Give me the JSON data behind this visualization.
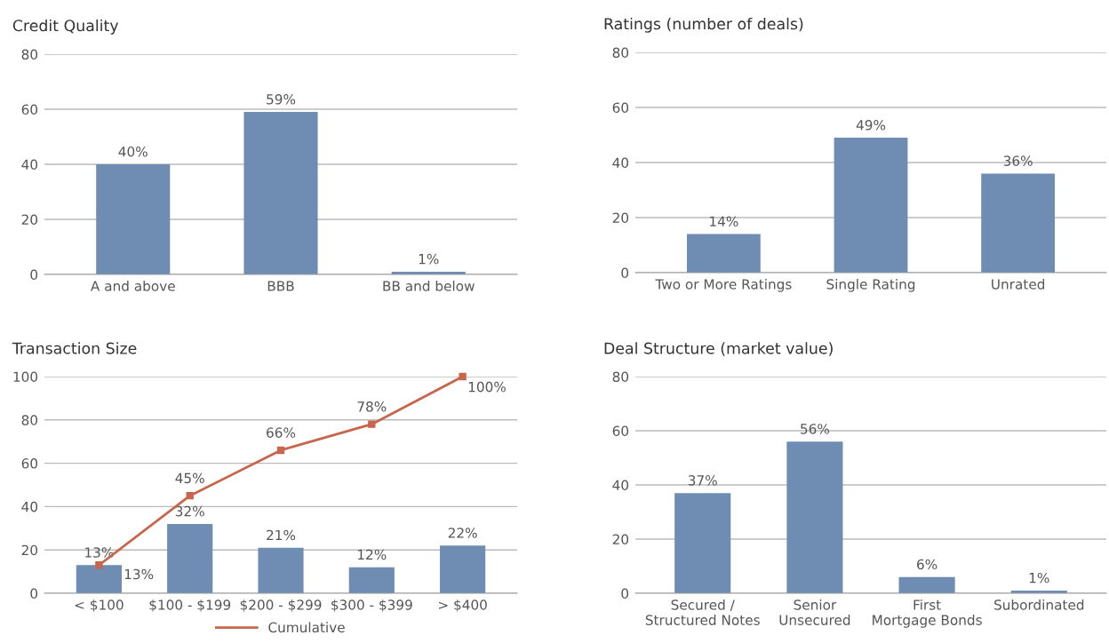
{
  "chart_data": [
    {
      "type": "bar",
      "title": "Credit Quality",
      "categories": [
        "A and above",
        "BBB",
        "BB and below"
      ],
      "values": [
        40,
        59,
        1
      ],
      "value_labels": [
        "40%",
        "59%",
        "1%"
      ],
      "color": "#6f8cb2",
      "ylim": [
        0,
        80
      ],
      "yticks": [
        0,
        20,
        40,
        60,
        80
      ],
      "grid": "y"
    },
    {
      "type": "bar",
      "title": "Ratings (number of deals)",
      "categories": [
        "Two or More Ratings",
        "Single Rating",
        "Unrated"
      ],
      "values": [
        14,
        49,
        36
      ],
      "value_labels": [
        "14%",
        "49%",
        "36%"
      ],
      "color": "#6f8cb2",
      "ylim": [
        0,
        80
      ],
      "yticks": [
        0,
        20,
        40,
        60,
        80
      ],
      "grid": "y"
    },
    {
      "type": "bar",
      "title": "Transaction Size",
      "categories": [
        "< $100",
        "$100 - $199",
        "$200 - $299",
        "$300 - $399",
        "> $400"
      ],
      "series": [
        {
          "type": "bar",
          "color": "#6f8cb2",
          "values": [
            13,
            32,
            21,
            12,
            22
          ],
          "value_labels": [
            "13%",
            "32%",
            "21%",
            "12%",
            "22%"
          ]
        },
        {
          "type": "line",
          "name": "Cumulative",
          "color": "#c8654d",
          "marker": "square",
          "values": [
            13,
            45,
            66,
            78,
            100
          ],
          "value_labels": [
            "13%",
            "45%",
            "66%",
            "78%",
            "100%"
          ]
        }
      ],
      "ylim": [
        0,
        100
      ],
      "yticks": [
        0,
        20,
        40,
        60,
        80,
        100
      ],
      "grid": "y",
      "legend": "bottom"
    },
    {
      "type": "bar",
      "title": "Deal Structure (market value)",
      "categories": [
        "Secured /\nStructured Notes",
        "Senior\nUnsecured",
        "First\nMortgage Bonds",
        "Subordinated"
      ],
      "values": [
        37,
        56,
        6,
        1
      ],
      "value_labels": [
        "37%",
        "56%",
        "6%",
        "1%"
      ],
      "color": "#6f8cb2",
      "ylim": [
        0,
        80
      ],
      "yticks": [
        0,
        20,
        40,
        60,
        80
      ],
      "grid": "y"
    }
  ]
}
